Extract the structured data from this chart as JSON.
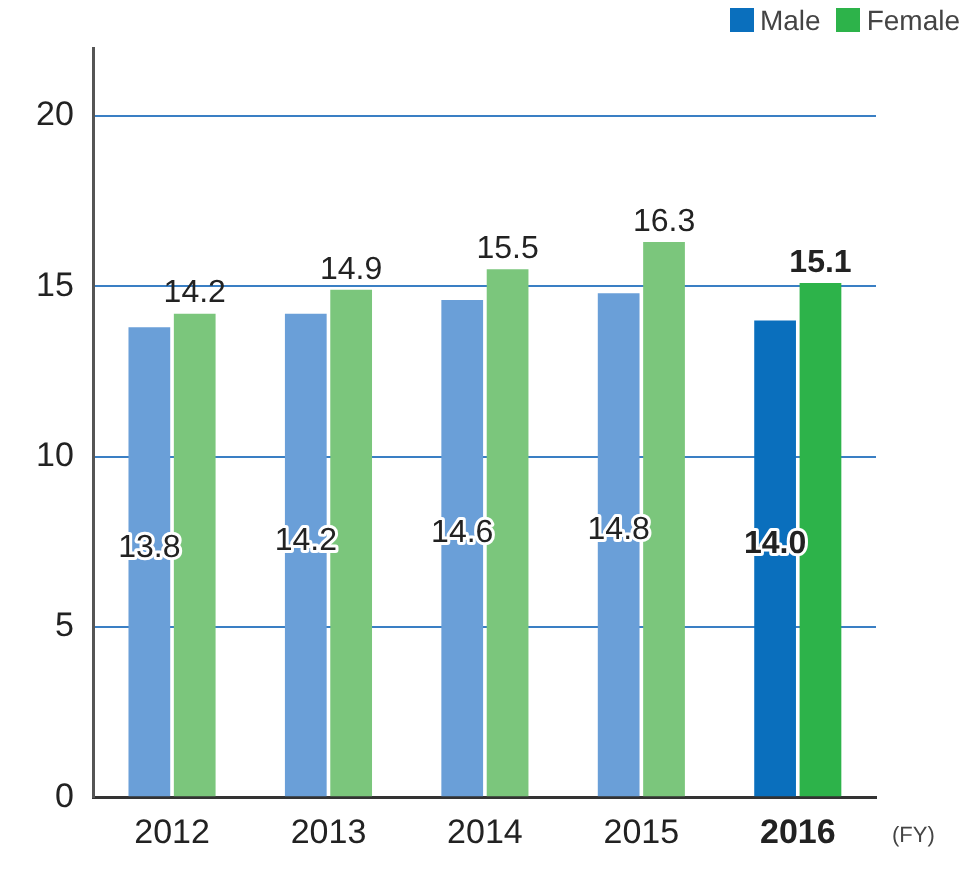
{
  "chart_data": {
    "type": "bar",
    "categories": [
      "2012",
      "2013",
      "2014",
      "2015",
      "2016"
    ],
    "xlabel": "(FY)",
    "series": [
      {
        "name": "Male",
        "color": "#0a6fbd",
        "colors": [
          "#6a9fd8",
          "#6a9fd8",
          "#6a9fd8",
          "#6a9fd8",
          "#0a6fbd"
        ],
        "values": [
          13.8,
          14.2,
          14.6,
          14.8,
          14.0
        ],
        "value_labels": [
          "13.8",
          "14.2",
          "14.6",
          "14.8",
          "14.0"
        ]
      },
      {
        "name": "Female",
        "color": "#2db34a",
        "colors": [
          "#7bc67c",
          "#7bc67c",
          "#7bc67c",
          "#7bc67c",
          "#2db34a"
        ],
        "values": [
          14.2,
          14.9,
          15.5,
          16.3,
          15.1
        ],
        "value_labels": [
          "14.2",
          "14.9",
          "15.5",
          "16.3",
          "15.1"
        ]
      }
    ],
    "ylim": [
      0,
      22
    ],
    "yticks": [
      0,
      5,
      10,
      15,
      20
    ],
    "grid": "y",
    "legend": "top right"
  }
}
